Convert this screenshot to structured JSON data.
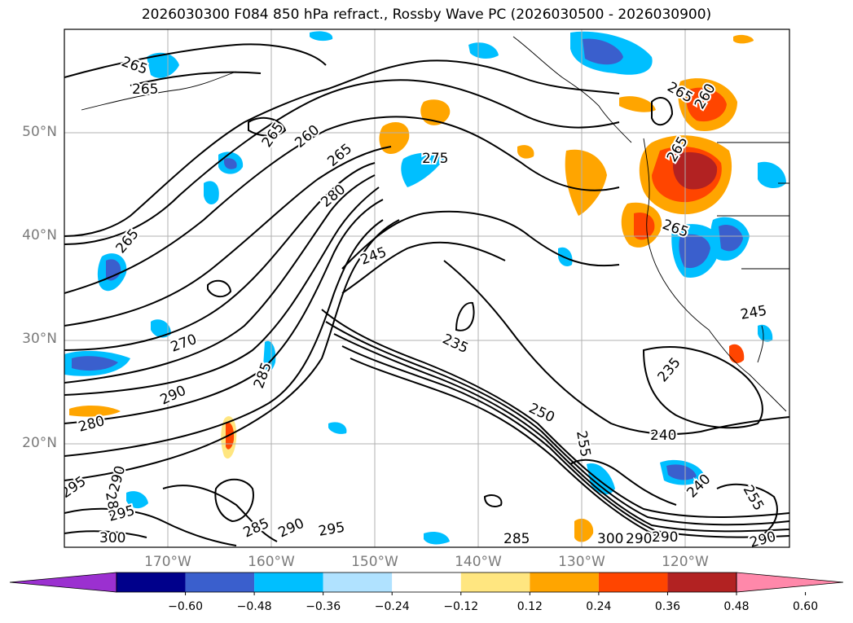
{
  "title": "2026030300 F084 850 hPa refract., Rossby Wave PC (2026030500 - 2026030900)",
  "lat_labels": [
    "50°N",
    "40°N",
    "30°N",
    "20°N"
  ],
  "lon_labels": [
    "170°W",
    "160°W",
    "150°W",
    "140°W",
    "130°W",
    "120°W"
  ],
  "colorbar": {
    "ticks": [
      "−0.60",
      "−0.48",
      "−0.36",
      "−0.24",
      "−0.12",
      "0.12",
      "0.24",
      "0.36",
      "0.48",
      "0.60"
    ],
    "colors": [
      "#9b30d0",
      "#00008b",
      "#3a5fcd",
      "#00bfff",
      "#b0e2ff",
      "#ffffff",
      "#ffe680",
      "#ffa500",
      "#ff4500",
      "#b22222",
      "#ff88aa"
    ]
  },
  "contour_labels": [
    "265",
    "265",
    "265",
    "260",
    "265",
    "280",
    "275",
    "245",
    "265",
    "265",
    "260",
    "265",
    "265",
    "270",
    "290",
    "280",
    "285",
    "235",
    "250",
    "255",
    "240",
    "235",
    "245",
    "240",
    "295",
    "285",
    "290",
    "295",
    "300",
    "285",
    "290",
    "295",
    "285",
    "300",
    "290",
    "290",
    "290",
    "255"
  ]
}
